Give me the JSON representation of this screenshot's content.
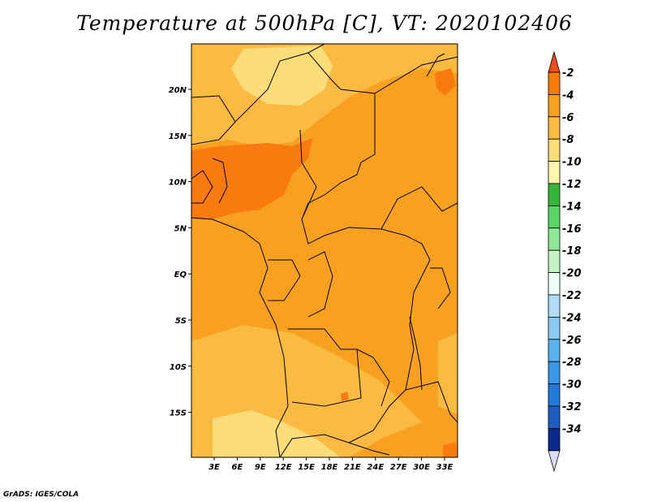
{
  "title": "Temperature at 500hPa [C], VT: 2020102406",
  "credit": "GrADS: IGES/COLA",
  "map": {
    "lat_labels": [
      "20N",
      "15N",
      "10N",
      "5N",
      "EQ",
      "5S",
      "10S",
      "15S"
    ],
    "lon_labels": [
      "3E",
      "6E",
      "9E",
      "12E",
      "15E",
      "18E",
      "21E",
      "24E",
      "27E",
      "30E",
      "33E"
    ]
  },
  "colorbar": {
    "labels": [
      "-2",
      "-4",
      "-6",
      "-8",
      "-10",
      "-12",
      "-14",
      "-16",
      "-18",
      "-20",
      "-22",
      "-24",
      "-26",
      "-28",
      "-30",
      "-32",
      "-34"
    ],
    "colors": [
      "#ee4f1a",
      "#f97a0f",
      "#f8a120",
      "#fbba42",
      "#fddc7a",
      "#fff5b0",
      "#36b53a",
      "#5cd468",
      "#8fe694",
      "#c4f4c4",
      "#eefcf7",
      "#b2dcf6",
      "#8ccaf3",
      "#5ab3ef",
      "#3a98e6",
      "#2478d8",
      "#1e5cc0",
      "#0c2a8c",
      "#dcdcf8"
    ]
  }
}
